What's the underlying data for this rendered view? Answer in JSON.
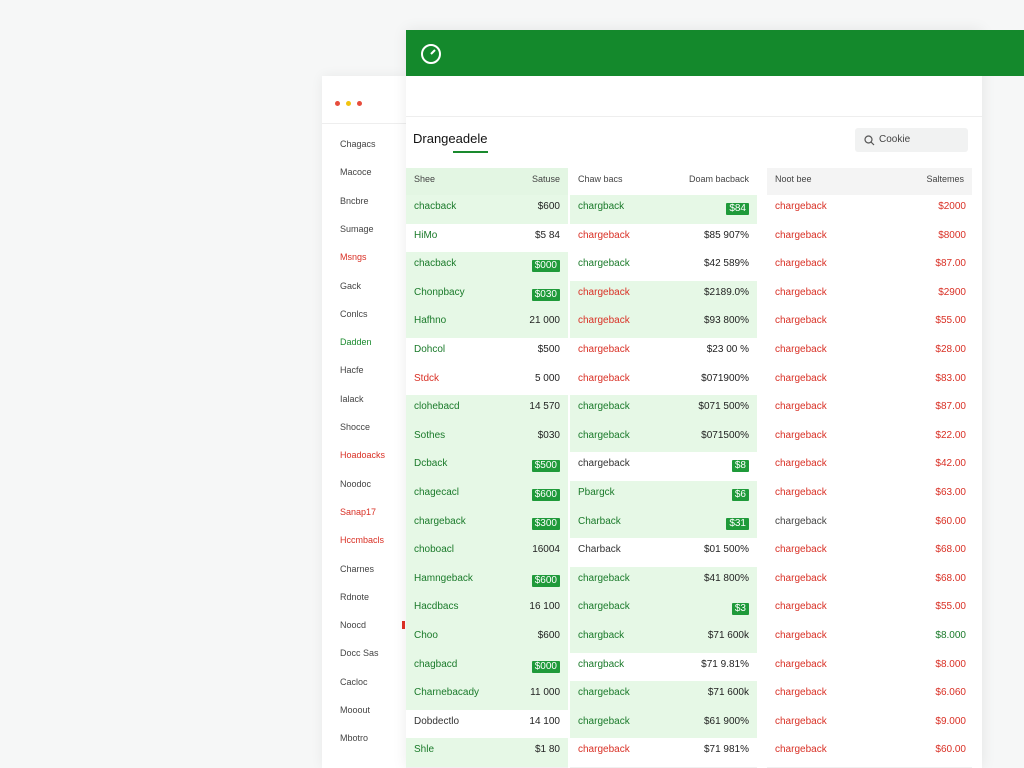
{
  "header": {
    "title": "Drangeadele",
    "search": "Cookie"
  },
  "sidebar": {
    "items": [
      {
        "label": "Chagacs",
        "color": "#444"
      },
      {
        "label": "Macoce",
        "color": "#444"
      },
      {
        "label": "Bncbre",
        "color": "#444"
      },
      {
        "label": "Sumage",
        "color": "#444"
      },
      {
        "label": "Msngs",
        "color": "#d93025"
      },
      {
        "label": "Gack",
        "color": "#444"
      },
      {
        "label": "Conlcs",
        "color": "#444"
      },
      {
        "label": "Dadden",
        "color": "#1a8a2e"
      },
      {
        "label": "Hacfe",
        "color": "#444"
      },
      {
        "label": "Ialack",
        "color": "#444"
      },
      {
        "label": "Shocce",
        "color": "#444"
      },
      {
        "label": "Hoadoacks",
        "color": "#d93025"
      },
      {
        "label": "Noodoc",
        "color": "#444"
      },
      {
        "label": "Sanap17",
        "color": "#d93025"
      },
      {
        "label": "Hccmbacls",
        "color": "#d93025"
      },
      {
        "label": "Charnes",
        "color": "#444"
      },
      {
        "label": "Rdnote",
        "color": "#444"
      },
      {
        "label": "Noocd",
        "color": "#444"
      },
      {
        "label": "Docc Sas",
        "color": "#444"
      },
      {
        "label": "Cacloc",
        "color": "#444"
      },
      {
        "label": "Mooout",
        "color": "#444"
      },
      {
        "label": "Mbotro",
        "color": "#444"
      }
    ]
  },
  "tables": [
    {
      "header": [
        "Shee",
        "Satuse"
      ],
      "rows": [
        {
          "name": "chacback",
          "amount": "$600",
          "color": "#1a7a2a"
        },
        {
          "name": "HiMo",
          "amount": "$5 84",
          "color": "#1a7a2a"
        },
        {
          "name": "chacback",
          "amount": "$000",
          "color": "#1a7a2a"
        },
        {
          "name": "Chonpbacy",
          "amount": "$030",
          "color": "#1a7a2a"
        },
        {
          "name": "Hafhno",
          "amount": "21 000",
          "color": "#1a7a2a"
        },
        {
          "name": "Dohcol",
          "amount": "$500",
          "color": "#1a7a2a"
        },
        {
          "name": "Stdck",
          "amount": "5 000",
          "color": "#d93025"
        },
        {
          "name": "clohebacd",
          "amount": "14 570",
          "color": "#1a7a2a"
        },
        {
          "name": "Sothes",
          "amount": "$030",
          "color": "#1a7a2a"
        },
        {
          "name": "Dcback",
          "amount": "$500",
          "color": "#1a7a2a"
        },
        {
          "name": "chagecacl",
          "amount": "$600",
          "color": "#1a7a2a"
        },
        {
          "name": "chargeback",
          "amount": "$300",
          "color": "#1a7a2a"
        },
        {
          "name": "choboacl",
          "amount": "16004",
          "color": "#1a7a2a"
        },
        {
          "name": "Hamngeback",
          "amount": "$600",
          "color": "#1a7a2a"
        },
        {
          "name": "Hacdbacs",
          "amount": "16 100",
          "color": "#1a7a2a"
        },
        {
          "name": "Choo",
          "amount": "$600",
          "color": "#1a7a2a"
        },
        {
          "name": "chagbacd",
          "amount": "$000",
          "color": "#1a7a2a"
        },
        {
          "name": "Charnebacady",
          "amount": "11 000",
          "color": "#1a7a2a"
        },
        {
          "name": "Dobdectlo",
          "amount": "14 100",
          "color": "#333"
        },
        {
          "name": "Shle",
          "amount": "$1 80",
          "color": "#1a7a2a"
        }
      ]
    },
    {
      "header": [
        "Chaw bacs",
        "Doam bacback"
      ],
      "rows": [
        {
          "name": "chargback",
          "amount": "$84",
          "color": "#1a7a2a"
        },
        {
          "name": "chargeback",
          "amount": "$85 907%",
          "color": "#d93025"
        },
        {
          "name": "chargeback",
          "amount": "$42 589%",
          "color": "#1a7a2a"
        },
        {
          "name": "chargeback",
          "amount": "$2189.0%",
          "color": "#d93025"
        },
        {
          "name": "chargeback",
          "amount": "$93 800%",
          "color": "#d93025"
        },
        {
          "name": "chargeback",
          "amount": "$23 00 %",
          "color": "#d93025"
        },
        {
          "name": "chargeback",
          "amount": "$071900%",
          "color": "#d93025"
        },
        {
          "name": "chargeback",
          "amount": "$071 500%",
          "color": "#1a7a2a"
        },
        {
          "name": "chargeback",
          "amount": "$071500%",
          "color": "#1a7a2a"
        },
        {
          "name": "chargeback",
          "amount": "$8",
          "color": "#333"
        },
        {
          "name": "Pbargck",
          "amount": "$6",
          "color": "#1a7a2a"
        },
        {
          "name": "Charback",
          "amount": "$31",
          "color": "#1a7a2a"
        },
        {
          "name": "Charback",
          "amount": "$01 500%",
          "color": "#333"
        },
        {
          "name": "chargeback",
          "amount": "$41 800%",
          "color": "#1a7a2a"
        },
        {
          "name": "chargeback",
          "amount": "$3",
          "color": "#1a7a2a"
        },
        {
          "name": "chargback",
          "amount": "$71 600k",
          "color": "#1a7a2a"
        },
        {
          "name": "chargback",
          "amount": "$71 9.81%",
          "color": "#1a7a2a"
        },
        {
          "name": "chargeback",
          "amount": "$71 600k",
          "color": "#1a7a2a"
        },
        {
          "name": "chargeback",
          "amount": "$61 900%",
          "color": "#1a7a2a"
        },
        {
          "name": "chargeback",
          "amount": "$71 981%",
          "color": "#d93025"
        }
      ]
    },
    {
      "header": [
        "Noot bee",
        "Saltemes"
      ],
      "rows": [
        {
          "name": "chargeback",
          "amount": "$2000",
          "color": "#d93025",
          "amount_color": "#d93025"
        },
        {
          "name": "chargeback",
          "amount": "$8000",
          "color": "#d93025",
          "amount_color": "#d93025"
        },
        {
          "name": "chargeback",
          "amount": "$87.00",
          "color": "#d93025",
          "amount_color": "#d93025"
        },
        {
          "name": "chargeback",
          "amount": "$2900",
          "color": "#d93025",
          "amount_color": "#d93025"
        },
        {
          "name": "chargeback",
          "amount": "$55.00",
          "color": "#d93025",
          "amount_color": "#d93025"
        },
        {
          "name": "chargeback",
          "amount": "$28.00",
          "color": "#d93025",
          "amount_color": "#d93025"
        },
        {
          "name": "chargeback",
          "amount": "$83.00",
          "color": "#d93025",
          "amount_color": "#d93025"
        },
        {
          "name": "chargeback",
          "amount": "$87.00",
          "color": "#d93025",
          "amount_color": "#d93025"
        },
        {
          "name": "chargeback",
          "amount": "$22.00",
          "color": "#d93025",
          "amount_color": "#d93025"
        },
        {
          "name": "chargeback",
          "amount": "$42.00",
          "color": "#d93025",
          "amount_color": "#d93025"
        },
        {
          "name": "chargeback",
          "amount": "$63.00",
          "color": "#d93025",
          "amount_color": "#d93025"
        },
        {
          "name": "chargeback",
          "amount": "$60.00",
          "color": "#444",
          "amount_color": "#d93025"
        },
        {
          "name": "chargeback",
          "amount": "$68.00",
          "color": "#d93025",
          "amount_color": "#d93025"
        },
        {
          "name": "chargeback",
          "amount": "$68.00",
          "color": "#d93025",
          "amount_color": "#d93025"
        },
        {
          "name": "chargeback",
          "amount": "$55.00",
          "color": "#d93025",
          "amount_color": "#d93025"
        },
        {
          "name": "chargeback",
          "amount": "$8.000",
          "color": "#d93025",
          "amount_color": "#1a7a2a"
        },
        {
          "name": "chargeback",
          "amount": "$8.000",
          "color": "#d93025",
          "amount_color": "#d93025"
        },
        {
          "name": "chargeback",
          "amount": "$6.060",
          "color": "#d93025",
          "amount_color": "#d93025"
        },
        {
          "name": "chargeback",
          "amount": "$9.000",
          "color": "#d93025",
          "amount_color": "#d93025"
        },
        {
          "name": "chargeback",
          "amount": "$60.00",
          "color": "#d93025",
          "amount_color": "#d93025"
        }
      ]
    }
  ]
}
